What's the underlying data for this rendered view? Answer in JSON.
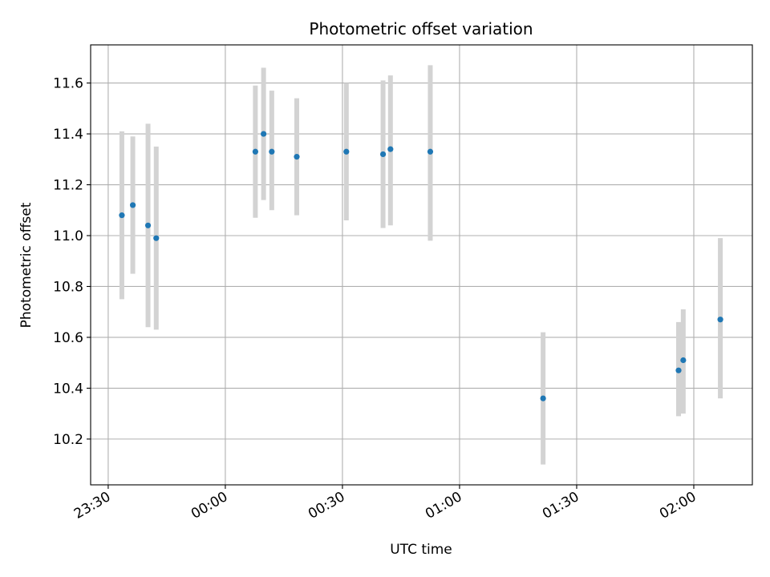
{
  "chart_data": {
    "type": "scatter",
    "title": "Photometric offset variation",
    "xlabel": "UTC time",
    "ylabel": "Photometric offset",
    "x_tick_labels": [
      "23:30",
      "00:00",
      "00:30",
      "01:00",
      "01:30",
      "02:00"
    ],
    "y_tick_labels": [
      "10.2",
      "10.4",
      "10.6",
      "10.8",
      "11.0",
      "11.2",
      "11.4",
      "11.6"
    ],
    "x_ticks_minutes": [
      -30,
      0,
      30,
      60,
      90,
      120
    ],
    "y_ticks": [
      10.2,
      10.4,
      10.6,
      10.8,
      11.0,
      11.2,
      11.4,
      11.6
    ],
    "xlim_minutes": [
      -34.5,
      135.0
    ],
    "ylim": [
      10.02,
      11.75
    ],
    "grid": true,
    "x_unit": "minutes relative to 00:00 UTC",
    "marker_color": "#1f77b4",
    "errorbar_color": "#d3d3d3",
    "points": [
      {
        "t": "23:33.5",
        "x": -26.5,
        "y": 11.08,
        "lo": 10.75,
        "hi": 11.41
      },
      {
        "t": "23:36.3",
        "x": -23.7,
        "y": 11.12,
        "lo": 10.85,
        "hi": 11.39
      },
      {
        "t": "23:40.2",
        "x": -19.8,
        "y": 11.04,
        "lo": 10.64,
        "hi": 11.44
      },
      {
        "t": "23:42.3",
        "x": -17.7,
        "y": 10.99,
        "lo": 10.63,
        "hi": 11.35
      },
      {
        "t": "00:07.7",
        "x": 7.7,
        "y": 11.33,
        "lo": 11.07,
        "hi": 11.59
      },
      {
        "t": "00:09.8",
        "x": 9.8,
        "y": 11.4,
        "lo": 11.14,
        "hi": 11.66
      },
      {
        "t": "00:11.9",
        "x": 11.9,
        "y": 11.33,
        "lo": 11.1,
        "hi": 11.57
      },
      {
        "t": "00:18.3",
        "x": 18.3,
        "y": 11.31,
        "lo": 11.08,
        "hi": 11.54
      },
      {
        "t": "00:31.0",
        "x": 31.0,
        "y": 11.33,
        "lo": 11.06,
        "hi": 11.6
      },
      {
        "t": "00:40.4",
        "x": 40.4,
        "y": 11.32,
        "lo": 11.03,
        "hi": 11.61
      },
      {
        "t": "00:42.3",
        "x": 42.3,
        "y": 11.34,
        "lo": 11.04,
        "hi": 11.63
      },
      {
        "t": "00:52.5",
        "x": 52.5,
        "y": 11.33,
        "lo": 10.98,
        "hi": 11.67
      },
      {
        "t": "01:21.4",
        "x": 81.4,
        "y": 10.36,
        "lo": 10.1,
        "hi": 10.62
      },
      {
        "t": "01:56.1",
        "x": 116.1,
        "y": 10.47,
        "lo": 10.29,
        "hi": 10.66
      },
      {
        "t": "01:57.3",
        "x": 117.3,
        "y": 10.51,
        "lo": 10.3,
        "hi": 10.71
      },
      {
        "t": "02:06.8",
        "x": 126.8,
        "y": 10.67,
        "lo": 10.36,
        "hi": 10.99
      }
    ]
  }
}
